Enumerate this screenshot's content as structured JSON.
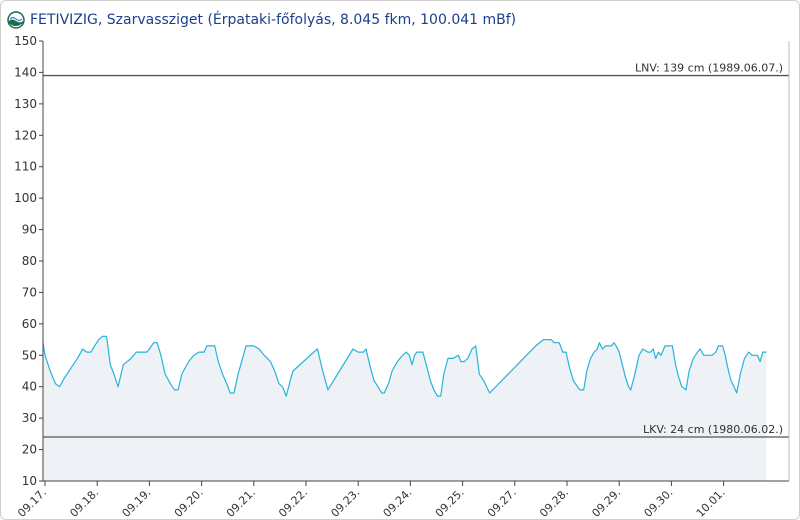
{
  "header": {
    "title": "FETIVIZIG, Szarvassziget (Érpataki-főfolyás, 8.045 fkm, 100.041 mBf)",
    "logo_icon": "globe-wave-logo"
  },
  "chart_data": {
    "type": "line",
    "title": "FETIVIZIG, Szarvassziget (Érpataki-főfolyás, 8.045 fkm, 100.041 mBf)",
    "xlabel": "",
    "ylabel": "",
    "ylim": [
      10,
      150
    ],
    "yticks": [
      10,
      20,
      30,
      40,
      50,
      60,
      70,
      80,
      90,
      100,
      110,
      120,
      130,
      140,
      150
    ],
    "xlim": [
      0,
      14.0
    ],
    "xticks": [
      {
        "t": 0,
        "label": "09.17."
      },
      {
        "t": 1,
        "label": "09.18."
      },
      {
        "t": 2,
        "label": "09.19."
      },
      {
        "t": 3,
        "label": "09.20."
      },
      {
        "t": 4,
        "label": "09.21."
      },
      {
        "t": 5,
        "label": "09.22."
      },
      {
        "t": 6,
        "label": "09.23."
      },
      {
        "t": 7,
        "label": "09.24."
      },
      {
        "t": 8,
        "label": "09.25."
      },
      {
        "t": 9,
        "label": "09.27."
      },
      {
        "t": 10,
        "label": "09.28."
      },
      {
        "t": 11,
        "label": "09.29."
      },
      {
        "t": 12,
        "label": "09.30."
      },
      {
        "t": 13,
        "label": "10.01."
      }
    ],
    "grid": false,
    "line_color": "#26b4d8",
    "fill_color": "#eef1f6",
    "reference_lines": [
      {
        "value": 139,
        "label": "LNV: 139 cm (1989.06.07.)"
      },
      {
        "value": 24,
        "label": "LKV: 24 cm (1980.06.02.)"
      }
    ],
    "series": [
      {
        "points": [
          [
            -0.1,
            54
          ],
          [
            0.0,
            50
          ],
          [
            0.1,
            45
          ],
          [
            0.2,
            41
          ],
          [
            0.28,
            40
          ],
          [
            0.38,
            43
          ],
          [
            0.5,
            46
          ],
          [
            0.62,
            49
          ],
          [
            0.72,
            52
          ],
          [
            0.8,
            51
          ],
          [
            0.88,
            51
          ],
          [
            0.95,
            53
          ],
          [
            1.03,
            55
          ],
          [
            1.1,
            56
          ],
          [
            1.18,
            56
          ],
          [
            1.25,
            47
          ],
          [
            1.32,
            44
          ],
          [
            1.4,
            40
          ],
          [
            1.5,
            47
          ],
          [
            1.65,
            49
          ],
          [
            1.75,
            51
          ],
          [
            1.85,
            51
          ],
          [
            1.95,
            51
          ],
          [
            2.0,
            52
          ],
          [
            2.08,
            54
          ],
          [
            2.15,
            54
          ],
          [
            2.22,
            50
          ],
          [
            2.3,
            44
          ],
          [
            2.4,
            41
          ],
          [
            2.48,
            39
          ],
          [
            2.55,
            39
          ],
          [
            2.62,
            44
          ],
          [
            2.75,
            48
          ],
          [
            2.85,
            50
          ],
          [
            2.95,
            51
          ],
          [
            3.05,
            51
          ],
          [
            3.1,
            53
          ],
          [
            3.2,
            53
          ],
          [
            3.25,
            53
          ],
          [
            3.32,
            48
          ],
          [
            3.4,
            44
          ],
          [
            3.48,
            41
          ],
          [
            3.55,
            38
          ],
          [
            3.62,
            38
          ],
          [
            3.7,
            44
          ],
          [
            3.8,
            50
          ],
          [
            3.85,
            53
          ],
          [
            4.0,
            53
          ],
          [
            4.1,
            52
          ],
          [
            4.2,
            50
          ],
          [
            4.32,
            48
          ],
          [
            4.4,
            45
          ],
          [
            4.48,
            41
          ],
          [
            4.55,
            40
          ],
          [
            4.62,
            37
          ],
          [
            4.7,
            42
          ],
          [
            4.75,
            45
          ],
          [
            5.15,
            51
          ],
          [
            5.22,
            52
          ],
          [
            5.32,
            45
          ],
          [
            5.42,
            39
          ],
          [
            5.9,
            52
          ],
          [
            6.0,
            51
          ],
          [
            6.1,
            51
          ],
          [
            6.15,
            52
          ],
          [
            6.22,
            47
          ],
          [
            6.3,
            42
          ],
          [
            6.38,
            40
          ],
          [
            6.45,
            38
          ],
          [
            6.5,
            38
          ],
          [
            6.58,
            41
          ],
          [
            6.65,
            45
          ],
          [
            6.75,
            48
          ],
          [
            6.85,
            50
          ],
          [
            6.92,
            51
          ],
          [
            6.98,
            50
          ],
          [
            7.03,
            47
          ],
          [
            7.08,
            50
          ],
          [
            7.12,
            51
          ],
          [
            7.24,
            51
          ],
          [
            7.32,
            46
          ],
          [
            7.38,
            42
          ],
          [
            7.45,
            39
          ],
          [
            7.52,
            37
          ],
          [
            7.58,
            37
          ],
          [
            7.64,
            44
          ],
          [
            7.72,
            49
          ],
          [
            7.82,
            49
          ],
          [
            7.92,
            50
          ],
          [
            7.97,
            48
          ],
          [
            8.03,
            48
          ],
          [
            8.1,
            49
          ],
          [
            8.18,
            52
          ],
          [
            8.25,
            53
          ],
          [
            8.32,
            44
          ],
          [
            8.4,
            42
          ],
          [
            8.52,
            38
          ],
          [
            9.4,
            53
          ],
          [
            9.55,
            55
          ],
          [
            9.7,
            55
          ],
          [
            9.75,
            54
          ],
          [
            9.8,
            54
          ],
          [
            9.85,
            54
          ],
          [
            9.92,
            51
          ],
          [
            9.98,
            51
          ],
          [
            10.05,
            46
          ],
          [
            10.12,
            42
          ],
          [
            10.2,
            40
          ],
          [
            10.25,
            39
          ],
          [
            10.32,
            39
          ],
          [
            10.38,
            45
          ],
          [
            10.45,
            49
          ],
          [
            10.52,
            51
          ],
          [
            10.58,
            52
          ],
          [
            10.62,
            54
          ],
          [
            10.68,
            52
          ],
          [
            10.74,
            53
          ],
          [
            10.8,
            53
          ],
          [
            10.85,
            53
          ],
          [
            10.9,
            54
          ],
          [
            10.94,
            53
          ],
          [
            11.0,
            51
          ],
          [
            11.06,
            47
          ],
          [
            11.12,
            43
          ],
          [
            11.18,
            40
          ],
          [
            11.22,
            39
          ],
          [
            11.3,
            44
          ],
          [
            11.38,
            50
          ],
          [
            11.45,
            52
          ],
          [
            11.55,
            51
          ],
          [
            11.6,
            51
          ],
          [
            11.65,
            52
          ],
          [
            11.7,
            49
          ],
          [
            11.75,
            51
          ],
          [
            11.8,
            50
          ],
          [
            11.88,
            53
          ],
          [
            11.95,
            53
          ],
          [
            12.02,
            53
          ],
          [
            12.08,
            47
          ],
          [
            12.14,
            43
          ],
          [
            12.2,
            40
          ],
          [
            12.28,
            39
          ],
          [
            12.34,
            45
          ],
          [
            12.42,
            49
          ],
          [
            12.5,
            51
          ],
          [
            12.55,
            52
          ],
          [
            12.62,
            50
          ],
          [
            12.7,
            50
          ],
          [
            12.78,
            50
          ],
          [
            12.85,
            51
          ],
          [
            12.9,
            53
          ],
          [
            12.98,
            53
          ],
          [
            13.03,
            50
          ],
          [
            13.08,
            46
          ],
          [
            13.14,
            42
          ],
          [
            13.2,
            40
          ],
          [
            13.25,
            38
          ],
          [
            13.32,
            44
          ],
          [
            13.4,
            49
          ],
          [
            13.48,
            51
          ],
          [
            13.55,
            50
          ],
          [
            13.6,
            50
          ],
          [
            13.65,
            50
          ],
          [
            13.7,
            48
          ],
          [
            13.75,
            51
          ],
          [
            13.82,
            51
          ]
        ]
      }
    ]
  }
}
